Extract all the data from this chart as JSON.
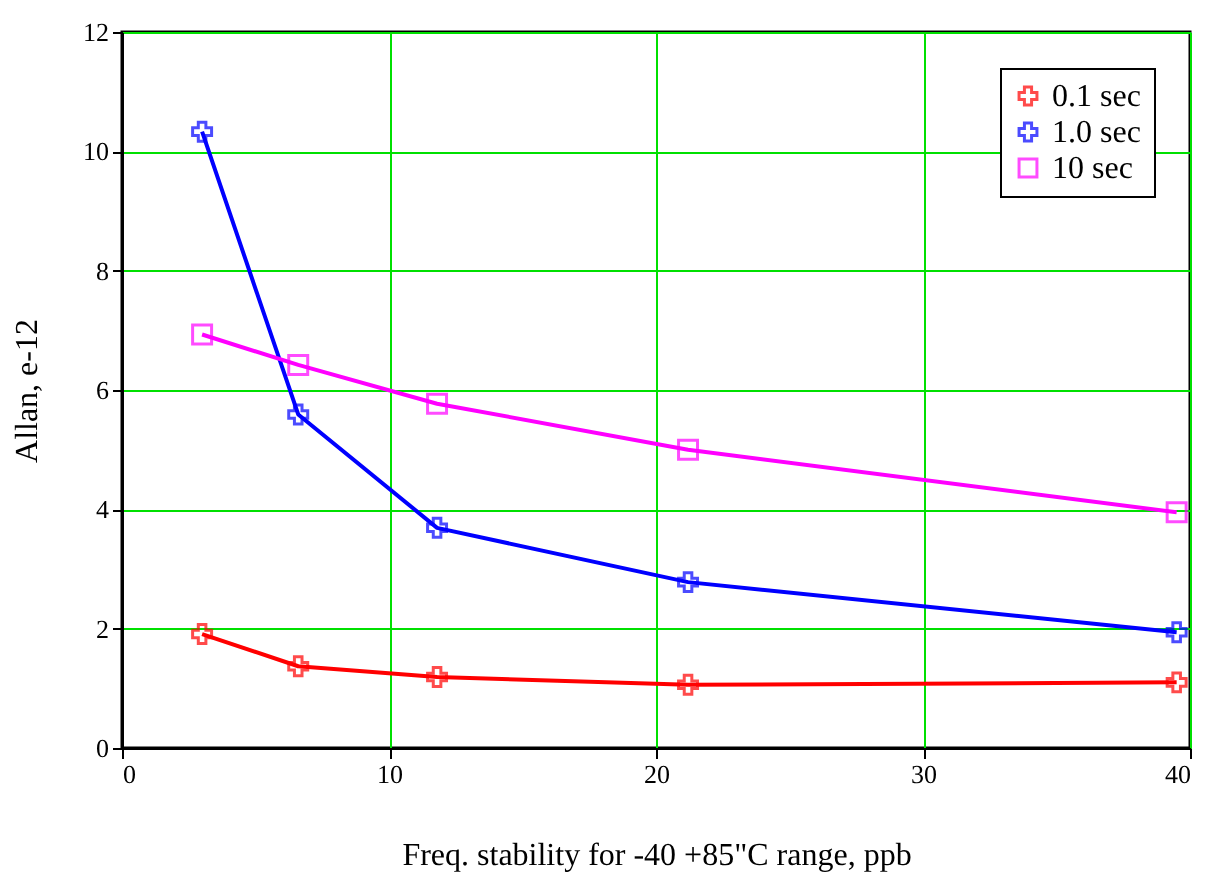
{
  "chart_data": {
    "type": "line",
    "xlabel": "Freq. stability for -40 +85\"C range, ppb",
    "ylabel": "Allan, e-12",
    "x": [
      3.0,
      6.6,
      11.8,
      21.2,
      39.5
    ],
    "series": [
      {
        "name": "0.1 sec",
        "color": "#ff0000",
        "marker": "cross",
        "values": [
          1.91,
          1.37,
          1.19,
          1.06,
          1.1
        ]
      },
      {
        "name": "1.0 sec",
        "color": "#0000ff",
        "marker": "cross",
        "values": [
          10.33,
          5.59,
          3.69,
          2.78,
          1.94
        ]
      },
      {
        "name": "10 sec",
        "color": "#ff00ff",
        "marker": "square",
        "values": [
          6.93,
          6.42,
          5.77,
          5.0,
          3.95
        ]
      }
    ],
    "xlim": [
      0,
      40
    ],
    "xticks": [
      0,
      10,
      20,
      30,
      40
    ],
    "ylim": [
      0,
      12
    ],
    "yticks": [
      0,
      2,
      4,
      6,
      8,
      10,
      12
    ],
    "grid": true,
    "legend": "top right",
    "line_style": "solid"
  }
}
